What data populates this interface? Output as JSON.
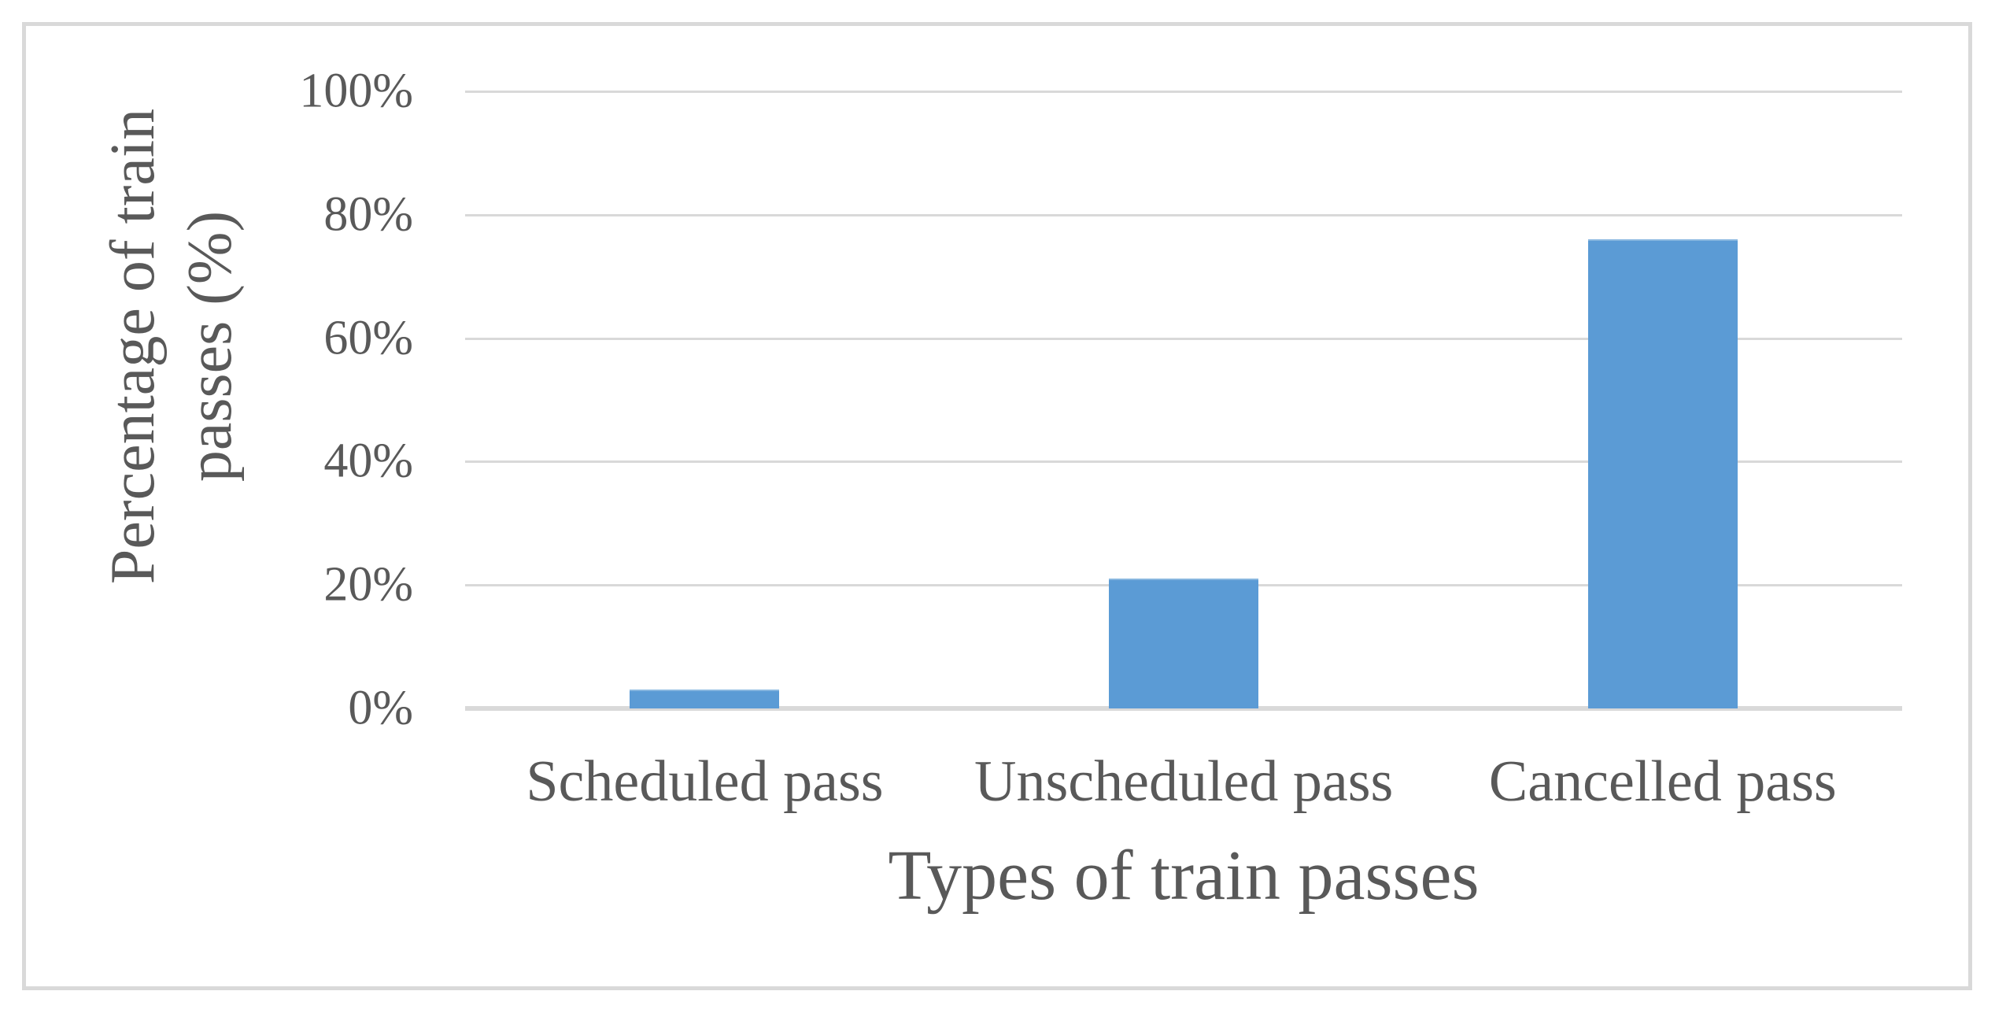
{
  "chart_data": {
    "type": "bar",
    "title": "",
    "categories": [
      "Scheduled pass",
      "Unscheduled pass",
      "Cancelled pass"
    ],
    "values": [
      3,
      21,
      76
    ],
    "value_unit": "%",
    "xlabel": "Types of train passes",
    "ylabel": "Percentage of train passes (%)",
    "ylabel_lines": [
      "Percentage of train",
      "passes  (%)"
    ],
    "ylim": [
      0,
      100
    ],
    "ytick_step": 20,
    "ytick_labels": [
      "0%",
      "20%",
      "40%",
      "60%",
      "80%",
      "100%"
    ],
    "grid": true,
    "legend": false,
    "bar_color": "#5b9bd5",
    "text_color": "#595959",
    "gridline_color": "#d9d9d9",
    "frame_color": "#d9d9d9",
    "background_color": "#ffffff"
  }
}
